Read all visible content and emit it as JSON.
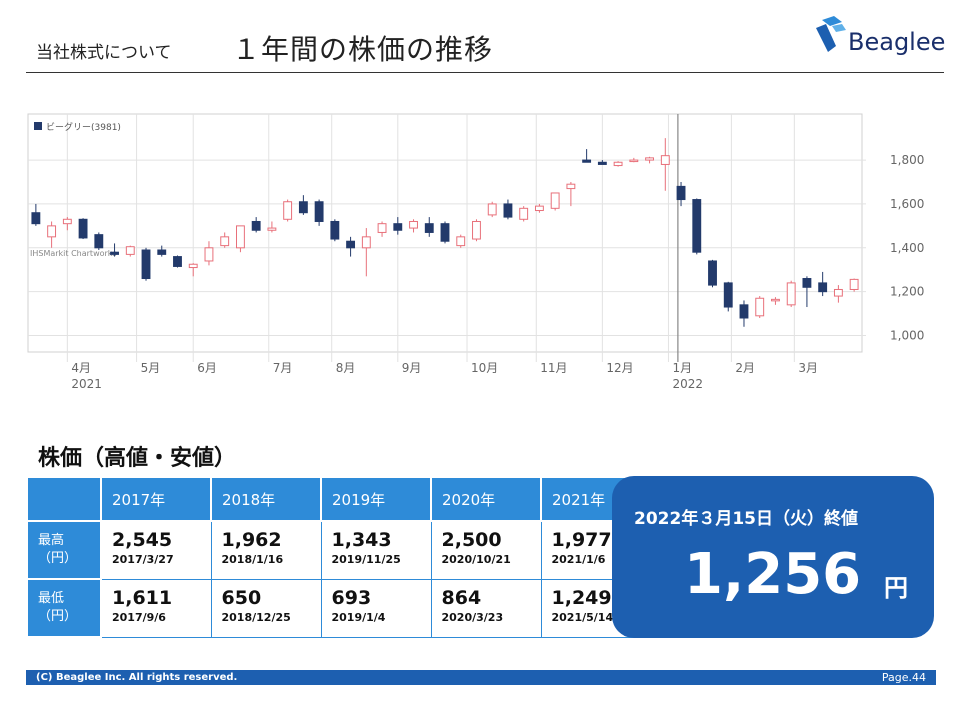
{
  "header": {
    "section": "当社株式について",
    "title": "１年間の株価の推移",
    "logo_text": "Beaglee"
  },
  "chart_data": {
    "type": "candlestick",
    "legend": "ビーグリー(3981)",
    "watermark": "IHSMarkit Chartworks",
    "y_ticks": [
      "1,800",
      "1,600",
      "1,400",
      "1,200",
      "1,000"
    ],
    "ylim": [
      925,
      2010
    ],
    "x_ticks": [
      {
        "label": "4月",
        "year": "2021",
        "i": 2
      },
      {
        "label": "5月",
        "year": "",
        "i": 6.4
      },
      {
        "label": "6月",
        "year": "",
        "i": 10
      },
      {
        "label": "7月",
        "year": "",
        "i": 14.8
      },
      {
        "label": "8月",
        "year": "",
        "i": 18.8
      },
      {
        "label": "9月",
        "year": "",
        "i": 23
      },
      {
        "label": "10月",
        "year": "",
        "i": 27.4
      },
      {
        "label": "11月",
        "year": "",
        "i": 31.8
      },
      {
        "label": "12月",
        "year": "",
        "i": 36
      },
      {
        "label": "1月",
        "year": "2022",
        "i": 40.2
      },
      {
        "label": "2月",
        "year": "",
        "i": 44.2
      },
      {
        "label": "3月",
        "year": "",
        "i": 48.2
      }
    ],
    "candles": [
      {
        "o": 1560,
        "h": 1600,
        "l": 1500,
        "c": 1510
      },
      {
        "o": 1450,
        "h": 1520,
        "l": 1400,
        "c": 1500
      },
      {
        "o": 1510,
        "h": 1540,
        "l": 1480,
        "c": 1530
      },
      {
        "o": 1530,
        "h": 1535,
        "l": 1440,
        "c": 1445
      },
      {
        "o": 1460,
        "h": 1470,
        "l": 1390,
        "c": 1400
      },
      {
        "o": 1380,
        "h": 1420,
        "l": 1360,
        "c": 1370
      },
      {
        "o": 1370,
        "h": 1410,
        "l": 1360,
        "c": 1405
      },
      {
        "o": 1390,
        "h": 1400,
        "l": 1250,
        "c": 1260
      },
      {
        "o": 1390,
        "h": 1410,
        "l": 1360,
        "c": 1370
      },
      {
        "o": 1360,
        "h": 1365,
        "l": 1310,
        "c": 1315
      },
      {
        "o": 1310,
        "h": 1330,
        "l": 1270,
        "c": 1325
      },
      {
        "o": 1340,
        "h": 1430,
        "l": 1320,
        "c": 1400
      },
      {
        "o": 1410,
        "h": 1470,
        "l": 1400,
        "c": 1450
      },
      {
        "o": 1400,
        "h": 1500,
        "l": 1380,
        "c": 1500
      },
      {
        "o": 1520,
        "h": 1540,
        "l": 1470,
        "c": 1480
      },
      {
        "o": 1480,
        "h": 1520,
        "l": 1470,
        "c": 1490
      },
      {
        "o": 1530,
        "h": 1620,
        "l": 1520,
        "c": 1610
      },
      {
        "o": 1610,
        "h": 1640,
        "l": 1550,
        "c": 1560
      },
      {
        "o": 1610,
        "h": 1620,
        "l": 1500,
        "c": 1520
      },
      {
        "o": 1520,
        "h": 1530,
        "l": 1430,
        "c": 1440
      },
      {
        "o": 1430,
        "h": 1450,
        "l": 1360,
        "c": 1400
      },
      {
        "o": 1400,
        "h": 1490,
        "l": 1270,
        "c": 1450
      },
      {
        "o": 1470,
        "h": 1520,
        "l": 1450,
        "c": 1510
      },
      {
        "o": 1510,
        "h": 1540,
        "l": 1460,
        "c": 1480
      },
      {
        "o": 1490,
        "h": 1530,
        "l": 1470,
        "c": 1520
      },
      {
        "o": 1510,
        "h": 1540,
        "l": 1450,
        "c": 1470
      },
      {
        "o": 1510,
        "h": 1520,
        "l": 1420,
        "c": 1430
      },
      {
        "o": 1410,
        "h": 1460,
        "l": 1400,
        "c": 1450
      },
      {
        "o": 1440,
        "h": 1530,
        "l": 1430,
        "c": 1520
      },
      {
        "o": 1550,
        "h": 1610,
        "l": 1540,
        "c": 1600
      },
      {
        "o": 1600,
        "h": 1620,
        "l": 1530,
        "c": 1540
      },
      {
        "o": 1530,
        "h": 1590,
        "l": 1520,
        "c": 1580
      },
      {
        "o": 1570,
        "h": 1600,
        "l": 1560,
        "c": 1590
      },
      {
        "o": 1580,
        "h": 1650,
        "l": 1570,
        "c": 1650
      },
      {
        "o": 1670,
        "h": 1700,
        "l": 1590,
        "c": 1690
      },
      {
        "o": 1800,
        "h": 1850,
        "l": 1790,
        "c": 1790
      },
      {
        "o": 1790,
        "h": 1800,
        "l": 1780,
        "c": 1780
      },
      {
        "o": 1775,
        "h": 1795,
        "l": 1770,
        "c": 1790
      },
      {
        "o": 1795,
        "h": 1810,
        "l": 1790,
        "c": 1800
      },
      {
        "o": 1800,
        "h": 1815,
        "l": 1785,
        "c": 1810
      },
      {
        "o": 1780,
        "h": 1900,
        "l": 1660,
        "c": 1820
      },
      {
        "o": 1680,
        "h": 1700,
        "l": 1590,
        "c": 1620
      },
      {
        "o": 1620,
        "h": 1625,
        "l": 1370,
        "c": 1380
      },
      {
        "o": 1340,
        "h": 1345,
        "l": 1220,
        "c": 1230
      },
      {
        "o": 1240,
        "h": 1245,
        "l": 1110,
        "c": 1130
      },
      {
        "o": 1140,
        "h": 1160,
        "l": 1040,
        "c": 1080
      },
      {
        "o": 1090,
        "h": 1180,
        "l": 1080,
        "c": 1170
      },
      {
        "o": 1160,
        "h": 1175,
        "l": 1140,
        "c": 1165
      },
      {
        "o": 1140,
        "h": 1250,
        "l": 1130,
        "c": 1240
      },
      {
        "o": 1260,
        "h": 1270,
        "l": 1130,
        "c": 1220
      },
      {
        "o": 1240,
        "h": 1290,
        "l": 1180,
        "c": 1200
      },
      {
        "o": 1180,
        "h": 1230,
        "l": 1150,
        "c": 1210
      },
      {
        "o": 1210,
        "h": 1260,
        "l": 1200,
        "c": 1256
      }
    ],
    "crosshair_i": 40.8
  },
  "stock_table": {
    "title": "株価（高値・安値）",
    "years": [
      "2017年",
      "2018年",
      "2019年",
      "2020年",
      "2021年"
    ],
    "rows": [
      {
        "label_1": "最高",
        "label_2": "（円）",
        "cells": [
          {
            "value": "2,545",
            "date": "2017/3/27"
          },
          {
            "value": "1,962",
            "date": "2018/1/16"
          },
          {
            "value": "1,343",
            "date": "2019/11/25"
          },
          {
            "value": "2,500",
            "date": "2020/10/21"
          },
          {
            "value": "1,977",
            "date": "2021/1/6"
          }
        ]
      },
      {
        "label_1": "最低",
        "label_2": "（円）",
        "cells": [
          {
            "value": "1,611",
            "date": "2017/9/6"
          },
          {
            "value": "650",
            "date": "2018/12/25"
          },
          {
            "value": "693",
            "date": "2019/1/4"
          },
          {
            "value": "864",
            "date": "2020/3/23"
          },
          {
            "value": "1,249",
            "date": "2021/5/14"
          }
        ]
      }
    ]
  },
  "closing": {
    "label": "2022年３月15日（火）終値",
    "value": "1,256",
    "unit": "円"
  },
  "footer": {
    "copyright": "(C) Beaglee Inc. All rights reserved.",
    "page": "Page.44"
  },
  "colors": {
    "up": "#e8707a",
    "down": "#233a6b",
    "accent": "#1d5fb0",
    "table_header": "#2e8bd8"
  }
}
